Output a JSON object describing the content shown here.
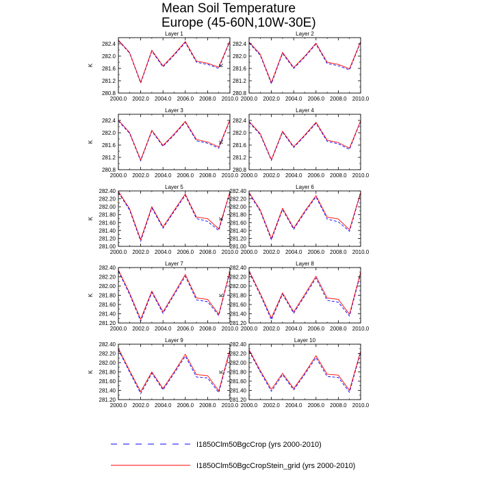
{
  "title_line1": "Mean Soil Temperature",
  "title_line2": "Europe (45-60N,10W-30E)",
  "legend": {
    "entries": [
      {
        "label": "I1850Clm50BgcCrop (yrs 2000-2010)",
        "color": "#0000ff",
        "style": "dashed"
      },
      {
        "label": "I1850Clm50BgcCropStein_grid (yrs 2000-2010)",
        "color": "#ff0000",
        "style": "solid"
      }
    ]
  },
  "chart_data": [
    {
      "type": "line",
      "title": "Layer 1",
      "ylabel": "K",
      "xlim": [
        2000,
        2010
      ],
      "ylim": [
        280.8,
        282.6
      ],
      "xticks": [
        "2000.0",
        "2002.0",
        "2004.0",
        "2006.0",
        "2008.0",
        "2010.0"
      ],
      "yticks": [
        "280.8",
        "281.2",
        "281.6",
        "282.0",
        "282.4"
      ],
      "x": [
        2000,
        2001,
        2002,
        2003,
        2004,
        2005,
        2006,
        2007,
        2008,
        2009,
        2010
      ],
      "series": [
        {
          "values": [
            282.5,
            282.1,
            281.12,
            282.16,
            281.65,
            282.03,
            282.44,
            281.8,
            281.73,
            281.6,
            282.48
          ],
          "color": "#0000ff",
          "style": "dashed"
        },
        {
          "values": [
            282.52,
            282.12,
            281.15,
            282.19,
            281.68,
            282.06,
            282.47,
            281.84,
            281.77,
            281.64,
            282.5
          ],
          "color": "#ff0000",
          "style": "solid"
        }
      ]
    },
    {
      "type": "line",
      "title": "Layer 2",
      "ylabel": "K",
      "xlim": [
        2000,
        2010
      ],
      "ylim": [
        280.8,
        282.6
      ],
      "xticks": [
        "2000.0",
        "2002.0",
        "2004.0",
        "2006.0",
        "2008.0",
        "2010.0"
      ],
      "yticks": [
        "280.8",
        "281.2",
        "281.6",
        "282.0",
        "282.4"
      ],
      "x": [
        2000,
        2001,
        2002,
        2003,
        2004,
        2005,
        2006,
        2007,
        2008,
        2009,
        2010
      ],
      "series": [
        {
          "values": [
            282.43,
            282.03,
            281.1,
            282.09,
            281.6,
            281.97,
            282.39,
            281.76,
            281.69,
            281.55,
            282.45
          ],
          "color": "#0000ff",
          "style": "dashed"
        },
        {
          "values": [
            282.46,
            282.06,
            281.14,
            282.12,
            281.63,
            282.0,
            282.42,
            281.8,
            281.73,
            281.59,
            282.47
          ],
          "color": "#ff0000",
          "style": "solid"
        }
      ]
    },
    {
      "type": "line",
      "title": "Layer 3",
      "ylabel": "K",
      "xlim": [
        2000,
        2010
      ],
      "ylim": [
        280.8,
        282.6
      ],
      "xticks": [
        "2000.0",
        "2002.0",
        "2004.0",
        "2006.0",
        "2008.0",
        "2010.0"
      ],
      "yticks": [
        "280.8",
        "281.2",
        "281.6",
        "282.0",
        "282.4"
      ],
      "x": [
        2000,
        2001,
        2002,
        2003,
        2004,
        2005,
        2006,
        2007,
        2008,
        2009,
        2010
      ],
      "series": [
        {
          "values": [
            282.38,
            281.98,
            281.09,
            282.05,
            281.56,
            281.93,
            282.34,
            281.74,
            281.66,
            281.5,
            282.4
          ],
          "color": "#0000ff",
          "style": "dashed"
        },
        {
          "values": [
            282.41,
            282.01,
            281.12,
            282.08,
            281.59,
            281.96,
            282.37,
            281.78,
            281.7,
            281.54,
            282.42
          ],
          "color": "#ff0000",
          "style": "solid"
        }
      ]
    },
    {
      "type": "line",
      "title": "Layer 4",
      "ylabel": "K",
      "xlim": [
        2000,
        2010
      ],
      "ylim": [
        280.8,
        282.6
      ],
      "xticks": [
        "2000.0",
        "2002.0",
        "2004.0",
        "2006.0",
        "2008.0",
        "2010.0"
      ],
      "yticks": [
        "280.8",
        "281.2",
        "281.6",
        "282.0",
        "282.4"
      ],
      "x": [
        2000,
        2001,
        2002,
        2003,
        2004,
        2005,
        2006,
        2007,
        2008,
        2009,
        2010
      ],
      "series": [
        {
          "values": [
            282.34,
            281.94,
            281.1,
            282.02,
            281.52,
            281.9,
            282.31,
            281.72,
            281.64,
            281.46,
            282.37
          ],
          "color": "#0000ff",
          "style": "dashed"
        },
        {
          "values": [
            282.37,
            281.97,
            281.13,
            282.05,
            281.55,
            281.93,
            282.34,
            281.76,
            281.68,
            281.5,
            282.39
          ],
          "color": "#ff0000",
          "style": "solid"
        }
      ]
    },
    {
      "type": "line",
      "title": "Layer 5",
      "ylabel": "K",
      "xlim": [
        2000,
        2010
      ],
      "ylim": [
        281.0,
        282.4
      ],
      "xticks": [
        "2000.0",
        "2002.0",
        "2004.0",
        "2006.0",
        "2008.0",
        "2010.0"
      ],
      "yticks": [
        "281.00",
        "281.20",
        "281.40",
        "281.60",
        "281.80",
        "282.00",
        "282.20",
        "282.40"
      ],
      "x": [
        2000,
        2001,
        2002,
        2003,
        2004,
        2005,
        2006,
        2007,
        2008,
        2009,
        2010
      ],
      "series": [
        {
          "values": [
            282.36,
            281.92,
            281.13,
            281.97,
            281.46,
            281.88,
            282.29,
            281.7,
            281.63,
            281.4,
            282.36
          ],
          "color": "#0000ff",
          "style": "dashed"
        },
        {
          "values": [
            282.39,
            281.95,
            281.17,
            282.0,
            281.49,
            281.91,
            282.32,
            281.74,
            281.7,
            281.44,
            282.38
          ],
          "color": "#ff0000",
          "style": "solid"
        }
      ]
    },
    {
      "type": "line",
      "title": "Layer 6",
      "ylabel": "K",
      "xlim": [
        2000,
        2010
      ],
      "ylim": [
        281.0,
        282.4
      ],
      "xticks": [
        "2000.0",
        "2002.0",
        "2004.0",
        "2006.0",
        "2008.0",
        "2010.0"
      ],
      "yticks": [
        "281.00",
        "281.20",
        "281.40",
        "281.60",
        "281.80",
        "282.00",
        "282.20",
        "282.40"
      ],
      "x": [
        2000,
        2001,
        2002,
        2003,
        2004,
        2005,
        2006,
        2007,
        2008,
        2009,
        2010
      ],
      "series": [
        {
          "values": [
            282.33,
            281.89,
            281.16,
            281.93,
            281.43,
            281.86,
            282.25,
            281.69,
            281.62,
            281.38,
            282.34
          ],
          "color": "#0000ff",
          "style": "dashed"
        },
        {
          "values": [
            282.36,
            281.92,
            281.2,
            281.96,
            281.46,
            281.89,
            282.28,
            281.74,
            281.69,
            281.42,
            282.36
          ],
          "color": "#ff0000",
          "style": "solid"
        }
      ]
    },
    {
      "type": "line",
      "title": "Layer 7",
      "ylabel": "K",
      "xlim": [
        2000,
        2010
      ],
      "ylim": [
        281.2,
        282.4
      ],
      "xticks": [
        "2000.0",
        "2002.0",
        "2004.0",
        "2006.0",
        "2008.0",
        "2010.0"
      ],
      "yticks": [
        "281.20",
        "281.40",
        "281.60",
        "281.80",
        "282.00",
        "282.20",
        "282.40"
      ],
      "x": [
        2000,
        2001,
        2002,
        2003,
        2004,
        2005,
        2006,
        2007,
        2008,
        2009,
        2010
      ],
      "series": [
        {
          "values": [
            282.32,
            281.82,
            281.24,
            281.86,
            281.41,
            281.81,
            282.21,
            281.7,
            281.66,
            281.36,
            282.3
          ],
          "color": "#0000ff",
          "style": "dashed"
        },
        {
          "values": [
            282.35,
            281.85,
            281.28,
            281.89,
            281.44,
            281.84,
            282.25,
            281.74,
            281.71,
            281.39,
            282.33
          ],
          "color": "#ff0000",
          "style": "solid"
        }
      ]
    },
    {
      "type": "line",
      "title": "Layer 8",
      "ylabel": "K",
      "xlim": [
        2000,
        2010
      ],
      "ylim": [
        281.2,
        282.4
      ],
      "xticks": [
        "2000.0",
        "2002.0",
        "2004.0",
        "2006.0",
        "2008.0",
        "2010.0"
      ],
      "yticks": [
        "281.20",
        "281.40",
        "281.60",
        "281.80",
        "282.00",
        "282.20",
        "282.40"
      ],
      "x": [
        2000,
        2001,
        2002,
        2003,
        2004,
        2005,
        2006,
        2007,
        2008,
        2009,
        2010
      ],
      "series": [
        {
          "values": [
            282.3,
            281.81,
            281.27,
            281.82,
            281.41,
            281.79,
            282.17,
            281.69,
            281.65,
            281.35,
            282.27
          ],
          "color": "#0000ff",
          "style": "dashed"
        },
        {
          "values": [
            282.33,
            281.84,
            281.31,
            281.85,
            281.44,
            281.82,
            282.21,
            281.74,
            281.71,
            281.39,
            282.3
          ],
          "color": "#ff0000",
          "style": "solid"
        }
      ]
    },
    {
      "type": "line",
      "title": "Layer 9",
      "ylabel": "K",
      "xlim": [
        2000,
        2010
      ],
      "ylim": [
        281.2,
        282.4
      ],
      "xticks": [
        "2000.0",
        "2002.0",
        "2004.0",
        "2006.0",
        "2008.0",
        "2010.0"
      ],
      "yticks": [
        "281.20",
        "281.40",
        "281.60",
        "281.80",
        "282.00",
        "282.20",
        "282.40"
      ],
      "x": [
        2000,
        2001,
        2002,
        2003,
        2004,
        2005,
        2006,
        2007,
        2008,
        2009,
        2010
      ],
      "series": [
        {
          "values": [
            282.28,
            281.8,
            281.33,
            281.77,
            281.41,
            281.77,
            282.14,
            281.69,
            281.67,
            281.35,
            282.25
          ],
          "color": "#0000ff",
          "style": "dashed"
        },
        {
          "values": [
            282.31,
            281.83,
            281.37,
            281.8,
            281.44,
            281.8,
            282.18,
            281.74,
            281.72,
            281.39,
            282.28
          ],
          "color": "#ff0000",
          "style": "solid"
        }
      ]
    },
    {
      "type": "line",
      "title": "Layer 10",
      "ylabel": "K",
      "xlim": [
        2000,
        2010
      ],
      "ylim": [
        281.2,
        282.4
      ],
      "xticks": [
        "2000.0",
        "2002.0",
        "2004.0",
        "2006.0",
        "2008.0",
        "2010.0"
      ],
      "yticks": [
        "281.20",
        "281.40",
        "281.60",
        "281.80",
        "282.00",
        "282.20",
        "282.40"
      ],
      "x": [
        2000,
        2001,
        2002,
        2003,
        2004,
        2005,
        2006,
        2007,
        2008,
        2009,
        2010
      ],
      "series": [
        {
          "values": [
            282.25,
            281.8,
            281.38,
            281.74,
            281.41,
            281.75,
            282.11,
            281.7,
            281.68,
            281.36,
            282.22
          ],
          "color": "#0000ff",
          "style": "dashed"
        },
        {
          "values": [
            282.28,
            281.83,
            281.42,
            281.77,
            281.44,
            281.78,
            282.15,
            281.75,
            281.73,
            281.4,
            282.25
          ],
          "color": "#ff0000",
          "style": "solid"
        }
      ]
    }
  ]
}
